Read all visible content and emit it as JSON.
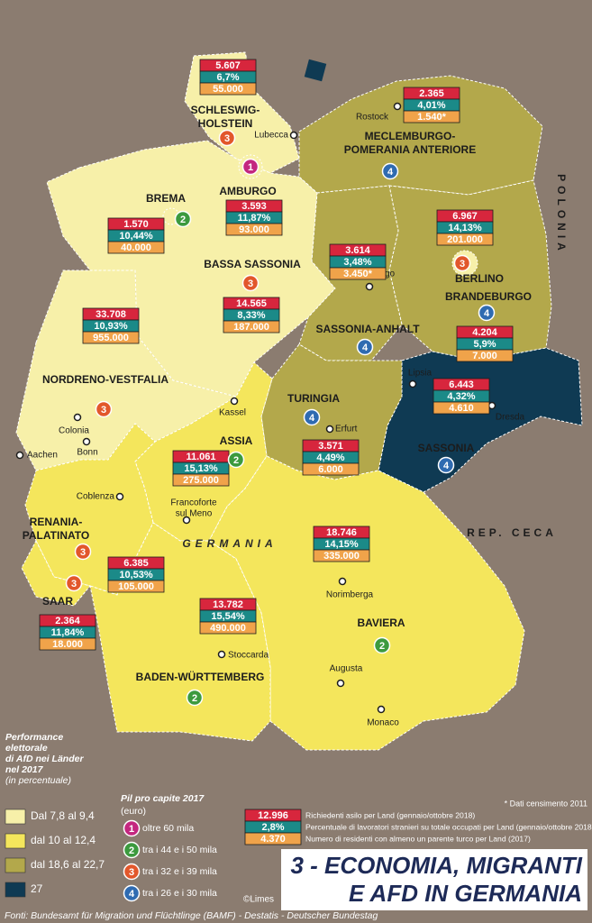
{
  "labels": {
    "country": "GERMANIA",
    "poland": "POLONIA",
    "czech": "REP. CECA"
  },
  "states": [
    {
      "name": [
        "SCHLESWIG-",
        "HOLSTEIN"
      ],
      "rank": "3",
      "asylum": "5.607",
      "foreign_workers": "6,7%",
      "turkish": "55.000"
    },
    {
      "name": [
        "AMBURGO"
      ],
      "rank": "1",
      "asylum": "3.593",
      "foreign_workers": "11,87%",
      "turkish": "93.000"
    },
    {
      "name": [
        "BREMA"
      ],
      "rank": "2",
      "asylum": "1.570",
      "foreign_workers": "10,44%",
      "turkish": "40.000"
    },
    {
      "name": [
        "BASSA SASSONIA"
      ],
      "rank": "3",
      "asylum": "14.565",
      "foreign_workers": "8,33%",
      "turkish": "187.000"
    },
    {
      "name": [
        "MECLEMBURGO-",
        "POMERANIA ANTERIORE"
      ],
      "rank": "4",
      "asylum": "2.365",
      "foreign_workers": "4,01%",
      "turkish": "1.540*"
    },
    {
      "name": [
        "BERLINO"
      ],
      "rank": "3",
      "asylum": "6.967",
      "foreign_workers": "14,13%",
      "turkish": "201.000"
    },
    {
      "name": [
        "BRANDEBURGO"
      ],
      "rank": "4",
      "asylum": "4.204",
      "foreign_workers": "5,9%",
      "turkish": "7.000"
    },
    {
      "name": [
        "SASSONIA-ANHALT"
      ],
      "rank": "4",
      "asylum": "3.614",
      "foreign_workers": "3,48%",
      "turkish": "3.450*"
    },
    {
      "name": [
        "NORDRENO-VESTFALIA"
      ],
      "rank": "3",
      "asylum": "33.708",
      "foreign_workers": "10,93%",
      "turkish": "955.000"
    },
    {
      "name": [
        "SASSONIA"
      ],
      "rank": "4",
      "asylum": "6.443",
      "foreign_workers": "4,32%",
      "turkish": "4.610"
    },
    {
      "name": [
        "TURINGIA"
      ],
      "rank": "4",
      "asylum": "3.571",
      "foreign_workers": "4,49%",
      "turkish": "6.000"
    },
    {
      "name": [
        "ASSIA"
      ],
      "rank": "2",
      "asylum": "11.061",
      "foreign_workers": "15,13%",
      "turkish": "275.000"
    },
    {
      "name": [
        "RENANIA-",
        "PALATINATO"
      ],
      "rank": "3",
      "asylum": "6.385",
      "foreign_workers": "10,53%",
      "turkish": "105.000"
    },
    {
      "name": [
        "SAAR"
      ],
      "rank": "3",
      "asylum": "2.364",
      "foreign_workers": "11,84%",
      "turkish": "18.000"
    },
    {
      "name": [
        "BAVIERA"
      ],
      "rank": "2",
      "asylum": "18.746",
      "foreign_workers": "14,15%",
      "turkish": "335.000"
    },
    {
      "name": [
        "BADEN-WÜRTTEMBERG"
      ],
      "rank": "2",
      "asylum": "13.782",
      "foreign_workers": "15,54%",
      "turkish": "490.000"
    }
  ],
  "cities": [
    {
      "name": [
        "Lubecca"
      ]
    },
    {
      "name": [
        "Rostock"
      ]
    },
    {
      "name": [
        "Magdeburgo"
      ]
    },
    {
      "name": [
        "Lipsia"
      ]
    },
    {
      "name": [
        "Dresda"
      ]
    },
    {
      "name": [
        "Erfurt"
      ]
    },
    {
      "name": [
        "Kassel"
      ]
    },
    {
      "name": [
        "Colonia"
      ]
    },
    {
      "name": [
        "Bonn"
      ]
    },
    {
      "name": [
        "Aachen"
      ]
    },
    {
      "name": [
        "Coblenza"
      ]
    },
    {
      "name": [
        "Francoforte",
        "sul Meno"
      ]
    },
    {
      "name": [
        "Norimberga"
      ]
    },
    {
      "name": [
        "Stoccarda"
      ]
    },
    {
      "name": [
        "Augusta"
      ]
    },
    {
      "name": [
        "Monaco"
      ]
    }
  ],
  "legend": {
    "afd": {
      "title": [
        "Performance",
        "elettorale",
        "di AfD nei Länder",
        "nel 2017"
      ],
      "subtitle": "(in percentuale)",
      "items": [
        {
          "label": "Dal 7,8 al 9,4",
          "color": "#f7f0a9"
        },
        {
          "label": "dal 10 al 12,4",
          "color": "#f4e65c"
        },
        {
          "label": "dal 18,6 al 22,7",
          "color": "#b3a84b"
        },
        {
          "label": "27",
          "color": "#0f3a53"
        }
      ]
    },
    "gdp": {
      "title": "Pil pro capite 2017",
      "subtitle": "(euro)",
      "items": [
        {
          "number": "1",
          "label": "oltre 60 mila",
          "color": "#c3277f"
        },
        {
          "number": "2",
          "label": "tra i 44 e i 50 mila",
          "color": "#3c9a3e"
        },
        {
          "number": "3",
          "label": "tra i 32 e i 39 mila",
          "color": "#e2572b"
        },
        {
          "number": "4",
          "label": "tra i 26 e i 30 mila",
          "color": "#2f6bb1"
        }
      ]
    },
    "key": {
      "sample": [
        "12.996",
        "2,8%",
        "4.370"
      ],
      "descriptions": [
        "Richiedenti asilo per Land (gennaio/ottobre 2018)",
        "Percentuale di lavoratori stranieri su totale occupati per Land (gennaio/ottobre 2018)",
        "Numero di residenti con almeno un parente turco per Land (2017)"
      ]
    },
    "note": "* Dati censimento 2011"
  },
  "title": [
    "3 - ECONOMIA, MIGRANTI",
    "E AFD IN GERMANIA"
  ],
  "credit": "©Limes",
  "sources": "Fonti: Bundesamt für Migration und Flüchtlinge (BAMF) - Destatis - Deutscher Bundestag"
}
